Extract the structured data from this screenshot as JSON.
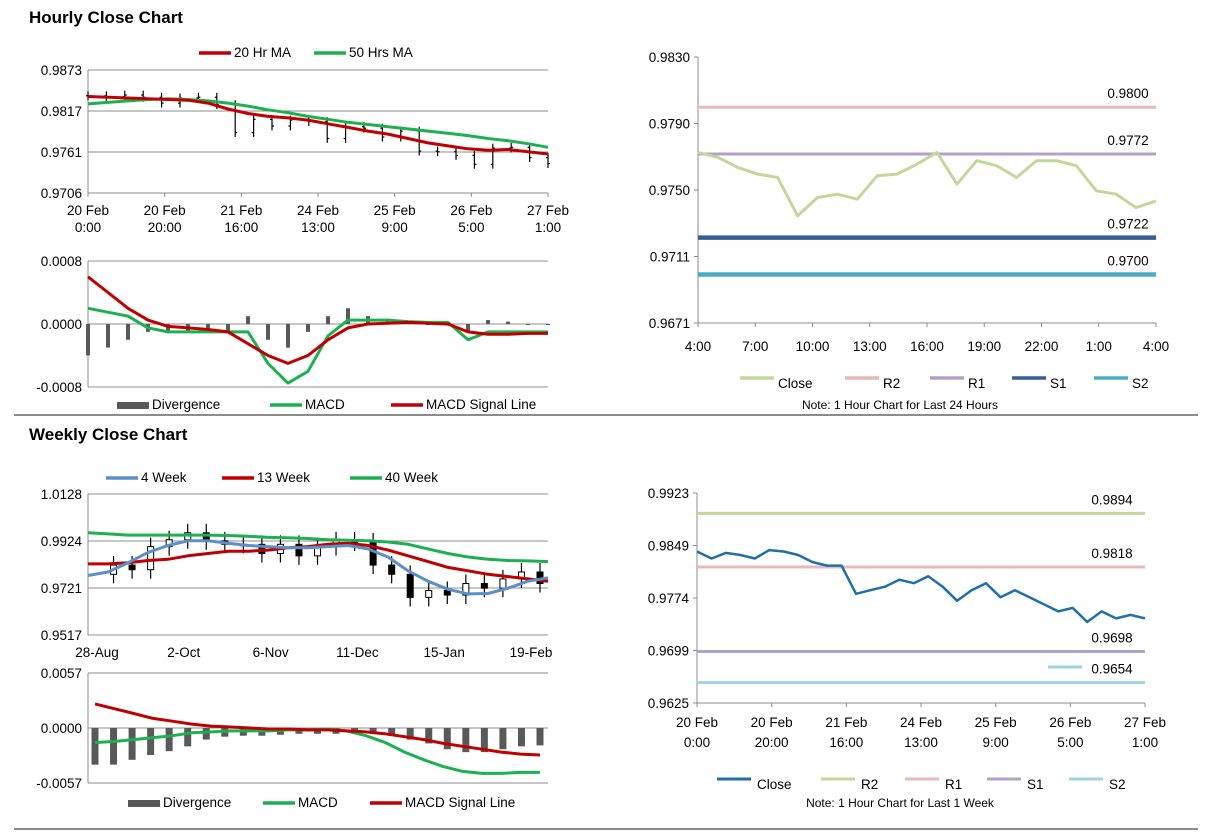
{
  "sections": {
    "hourly_title": "Hourly Close Chart",
    "weekly_title": "Weekly Close Chart"
  },
  "colors": {
    "ma_fast": "#c00000",
    "ma_slow": "#1db050",
    "ohlc": "#000000",
    "week4": "#5b8fc9",
    "close_light": "#c4d79b",
    "r2_pink": "#e6b9b8",
    "r1_purple": "#b3a2c7",
    "s1_blue": "#376092",
    "s2_teal": "#4bacc6",
    "close_blue": "#1f6fa8",
    "r2_green": "#c4d79b",
    "s2_light": "#9fd3e0",
    "divergence": "#595959"
  },
  "chart_data": [
    {
      "id": "hourly_price",
      "type": "line",
      "legend": [
        "20 Hr MA",
        "50 Hrs MA"
      ],
      "y_ticks": [
        "0.9873",
        "0.9817",
        "0.9761",
        "0.9706"
      ],
      "ylim": [
        0.9706,
        0.9873
      ],
      "x_labels": [
        [
          "20 Feb",
          "0:00"
        ],
        [
          "20 Feb",
          "20:00"
        ],
        [
          "21 Feb",
          "16:00"
        ],
        [
          "24 Feb",
          "13:00"
        ],
        [
          "25 Feb",
          "9:00"
        ],
        [
          "26 Feb",
          "5:00"
        ],
        [
          "27 Feb",
          "1:00"
        ]
      ],
      "series": [
        {
          "name": "20 Hr MA",
          "values": [
            0.9837,
            0.9836,
            0.9835,
            0.9834,
            0.9833,
            0.9832,
            0.9828,
            0.982,
            0.9814,
            0.981,
            0.9808,
            0.9805,
            0.98,
            0.9795,
            0.979,
            0.9786,
            0.978,
            0.9774,
            0.977,
            0.9766,
            0.9764,
            0.9765,
            0.9762,
            0.9759
          ]
        },
        {
          "name": "50 Hrs MA",
          "values": [
            0.9827,
            0.9829,
            0.9831,
            0.9833,
            0.9834,
            0.9833,
            0.9831,
            0.9828,
            0.9824,
            0.9819,
            0.9815,
            0.981,
            0.9806,
            0.9802,
            0.9799,
            0.9796,
            0.9793,
            0.979,
            0.9787,
            0.9784,
            0.978,
            0.9777,
            0.9773,
            0.9768
          ]
        },
        {
          "name": "Close",
          "values": [
            0.9838,
            0.9837,
            0.9839,
            0.9836,
            0.9828,
            0.9835,
            0.9836,
            0.9826,
            0.9788,
            0.9806,
            0.9797,
            0.9805,
            0.9803,
            0.978,
            0.9796,
            0.9794,
            0.9782,
            0.979,
            0.9763,
            0.9762,
            0.9757,
            0.9745,
            0.9767,
            0.9768,
            0.9754,
            0.9746
          ]
        }
      ]
    },
    {
      "id": "hourly_macd",
      "type": "line",
      "legend": [
        "Divergence",
        "MACD",
        "MACD Signal Line"
      ],
      "y_ticks": [
        "0.0008",
        "0.0000",
        "-0.0008"
      ],
      "ylim": [
        -0.0008,
        0.0008
      ],
      "series": [
        {
          "name": "MACD",
          "values": [
            0.0002,
            0.00015,
            0.0001,
            -5e-05,
            -0.0001,
            -0.0001,
            -0.0001,
            -0.0001,
            -0.0001,
            -0.0005,
            -0.00075,
            -0.0006,
            -0.00015,
            5e-05,
            5e-05,
            5e-05,
            3e-05,
            2e-05,
            2e-05,
            -0.0002,
            -0.0001,
            -0.0001,
            -0.0001,
            -0.0001
          ]
        },
        {
          "name": "MACD Signal Line",
          "values": [
            0.0006,
            0.0004,
            0.0002,
            5e-05,
            -3e-05,
            -5e-05,
            -7e-05,
            -0.0001,
            -0.00025,
            -0.0004,
            -0.0005,
            -0.0004,
            -0.0002,
            -5e-05,
            0.0,
            1e-05,
            2e-05,
            1e-05,
            0.0,
            -0.0001,
            -0.00013,
            -0.00013,
            -0.00012,
            -0.00012
          ]
        },
        {
          "name": "Divergence",
          "values": [
            -0.0004,
            -0.0003,
            -0.0002,
            -0.0001,
            -0.0001,
            -0.0001,
            -0.0001,
            -0.0001,
            0.0001,
            -0.0002,
            -0.0003,
            -0.0001,
            0.0001,
            0.0002,
            0.0001,
            5e-05,
            2e-05,
            0.0,
            -2e-05,
            -0.0001,
            5e-05,
            3e-05,
            0.0,
            0.0
          ]
        }
      ]
    },
    {
      "id": "hourly_levels",
      "type": "line",
      "legend": [
        "Close",
        "R2",
        "R1",
        "S1",
        "S2"
      ],
      "note": "Note: 1 Hour Chart for Last 24 Hours",
      "y_ticks": [
        "0.9830",
        "0.9790",
        "0.9750",
        "0.9711",
        "0.9671"
      ],
      "ylim": [
        0.9671,
        0.983
      ],
      "x_labels": [
        "4:00",
        "7:00",
        "10:00",
        "13:00",
        "16:00",
        "19:00",
        "22:00",
        "1:00",
        "4:00"
      ],
      "levels": [
        {
          "name": "R2",
          "value": 0.98,
          "label": "0.9800"
        },
        {
          "name": "R1",
          "value": 0.9772,
          "label": "0.9772"
        },
        {
          "name": "S1",
          "value": 0.9722,
          "label": "0.9722"
        },
        {
          "name": "S2",
          "value": 0.97,
          "label": "0.9700"
        }
      ],
      "series": [
        {
          "name": "Close",
          "values": [
            0.9773,
            0.977,
            0.9764,
            0.976,
            0.9758,
            0.9735,
            0.9746,
            0.9748,
            0.9745,
            0.9759,
            0.976,
            0.9766,
            0.9773,
            0.9754,
            0.9768,
            0.9765,
            0.9758,
            0.9768,
            0.9768,
            0.9765,
            0.975,
            0.9748,
            0.974,
            0.9744
          ]
        }
      ]
    },
    {
      "id": "weekly_price",
      "type": "line",
      "legend": [
        "4 Week",
        "13 Week",
        "40 Week"
      ],
      "y_ticks": [
        "1.0128",
        "0.9924",
        "0.9721",
        "0.9517"
      ],
      "ylim": [
        0.9517,
        1.0128
      ],
      "x_labels": [
        "28-Aug",
        "2-Oct",
        "6-Nov",
        "11-Dec",
        "15-Jan",
        "19-Feb"
      ],
      "series": [
        {
          "name": "4 Week",
          "values": [
            0.9775,
            0.979,
            0.983,
            0.9875,
            0.9905,
            0.9925,
            0.9925,
            0.9915,
            0.9905,
            0.99,
            0.9895,
            0.9895,
            0.99,
            0.9905,
            0.989,
            0.9855,
            0.9795,
            0.975,
            0.9715,
            0.9695,
            0.9697,
            0.972,
            0.975,
            0.9765
          ]
        },
        {
          "name": "13 Week",
          "values": [
            0.9825,
            0.9825,
            0.983,
            0.984,
            0.9845,
            0.986,
            0.987,
            0.988,
            0.988,
            0.9885,
            0.9895,
            0.99,
            0.991,
            0.9915,
            0.9905,
            0.9885,
            0.986,
            0.9835,
            0.981,
            0.9795,
            0.978,
            0.977,
            0.976,
            0.975
          ]
        },
        {
          "name": "40 Week",
          "values": [
            0.996,
            0.9955,
            0.995,
            0.995,
            0.995,
            0.995,
            0.995,
            0.9948,
            0.9945,
            0.994,
            0.9938,
            0.9935,
            0.993,
            0.9928,
            0.9925,
            0.992,
            0.991,
            0.989,
            0.987,
            0.9855,
            0.9845,
            0.984,
            0.9838,
            0.9835
          ]
        },
        {
          "name": "Close",
          "values": [
            0.978,
            0.982,
            0.98,
            0.99,
            0.993,
            0.996,
            0.9925,
            0.991,
            0.991,
            0.987,
            0.991,
            0.986,
            0.99,
            0.9925,
            0.992,
            0.982,
            0.978,
            0.968,
            0.971,
            0.969,
            0.974,
            0.972,
            0.976,
            0.979,
            0.974
          ]
        }
      ]
    },
    {
      "id": "weekly_macd",
      "type": "bar",
      "legend": [
        "Divergence",
        "MACD",
        "MACD Signal Line"
      ],
      "y_ticks": [
        "0.0057",
        "0.0000",
        "-0.0057"
      ],
      "ylim": [
        -0.0057,
        0.0057
      ],
      "series": [
        {
          "name": "MACD",
          "values": [
            -0.0015,
            -0.0014,
            -0.0012,
            -0.001,
            -0.0008,
            -0.0005,
            -0.0004,
            -0.0003,
            -0.0003,
            -0.0003,
            -0.0002,
            -0.0002,
            -0.0001,
            -0.0003,
            -0.0008,
            -0.0015,
            -0.0025,
            -0.0033,
            -0.004,
            -0.0045,
            -0.0047,
            -0.0047,
            -0.0046,
            -0.0046
          ]
        },
        {
          "name": "MACD Signal Line",
          "values": [
            0.0025,
            0.002,
            0.0015,
            0.001,
            0.0007,
            0.0004,
            0.0002,
            0.0001,
            0.0,
            -0.0001,
            -0.0001,
            -0.0002,
            -0.0002,
            -0.0003,
            -0.0004,
            -0.0006,
            -0.0009,
            -0.0012,
            -0.0016,
            -0.0019,
            -0.0022,
            -0.0025,
            -0.0027,
            -0.0028
          ]
        },
        {
          "name": "Divergence",
          "values": [
            -0.0038,
            -0.0038,
            -0.0033,
            -0.0028,
            -0.0024,
            -0.0019,
            -0.0012,
            -0.0009,
            -0.0008,
            -0.0008,
            -0.0007,
            -0.0006,
            -0.0006,
            -0.0006,
            -0.0006,
            -0.0006,
            -0.0008,
            -0.0012,
            -0.0016,
            -0.0022,
            -0.0025,
            -0.0025,
            -0.0022,
            -0.0019,
            -0.0018
          ]
        }
      ]
    },
    {
      "id": "weekly_levels",
      "type": "line",
      "legend": [
        "Close",
        "R2",
        "R1",
        "S1",
        "S2"
      ],
      "note": "Note: 1 Hour Chart for Last 1 Week",
      "y_ticks": [
        "0.9923",
        "0.9849",
        "0.9774",
        "0.9699",
        "0.9625"
      ],
      "ylim": [
        0.9625,
        0.9923
      ],
      "x_labels": [
        [
          "20 Feb",
          "0:00"
        ],
        [
          "20 Feb",
          "20:00"
        ],
        [
          "21 Feb",
          "16:00"
        ],
        [
          "24 Feb",
          "13:00"
        ],
        [
          "25 Feb",
          "9:00"
        ],
        [
          "26 Feb",
          "5:00"
        ],
        [
          "27 Feb",
          "1:00"
        ]
      ],
      "levels": [
        {
          "name": "R2",
          "value": 0.9894,
          "label": "0.9894"
        },
        {
          "name": "R1",
          "value": 0.9818,
          "label": "0.9818"
        },
        {
          "name": "S1",
          "value": 0.9698,
          "label": "0.9698"
        },
        {
          "name": "S2",
          "value": 0.9654,
          "label": "0.9654"
        }
      ],
      "series": [
        {
          "name": "Close",
          "values": [
            0.984,
            0.983,
            0.9838,
            0.9835,
            0.983,
            0.9842,
            0.984,
            0.9835,
            0.9825,
            0.982,
            0.982,
            0.978,
            0.9785,
            0.979,
            0.98,
            0.9795,
            0.9805,
            0.979,
            0.977,
            0.9785,
            0.9795,
            0.9775,
            0.9785,
            0.9775,
            0.9765,
            0.9755,
            0.976,
            0.974,
            0.9755,
            0.9745,
            0.975,
            0.9745
          ]
        }
      ]
    }
  ]
}
